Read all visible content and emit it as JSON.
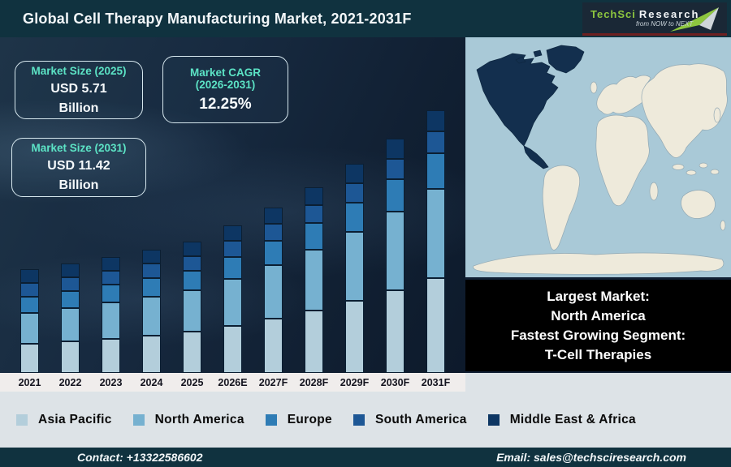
{
  "header": {
    "title": "Global Cell Therapy Manufacturing Market, 2021-2031F",
    "logo": {
      "brand": "TechSci",
      "brand2": "Research",
      "tagline": "from NOW to NEXT"
    }
  },
  "info_boxes": {
    "size_2025": {
      "title": "Market Size (2025)",
      "value": "USD 5.71",
      "unit": "Billion"
    },
    "cagr": {
      "title_line1": "Market CAGR",
      "title_line2": "(2026-2031)",
      "value": "12.25%"
    },
    "size_2031": {
      "title": "Market Size (2031)",
      "value": "USD 11.42",
      "unit": "Billion"
    }
  },
  "chart_data": {
    "type": "bar",
    "stacked": true,
    "title": "Global Cell Therapy Manufacturing Market, 2021-2031F",
    "unit": "USD Billion",
    "categories": [
      "2021",
      "2022",
      "2023",
      "2024",
      "2025",
      "2026E",
      "2027F",
      "2028F",
      "2029F",
      "2030F",
      "2031F"
    ],
    "series": [
      {
        "name": "Asia Pacific",
        "color": "#b3cedb",
        "values": [
          1.26,
          1.37,
          1.49,
          1.63,
          1.78,
          2.05,
          2.36,
          2.71,
          3.12,
          3.58,
          4.11
        ]
      },
      {
        "name": "North America",
        "color": "#76b1d0",
        "values": [
          1.35,
          1.44,
          1.56,
          1.67,
          1.8,
          2.05,
          2.33,
          2.65,
          3.01,
          3.42,
          3.88
        ]
      },
      {
        "name": "Europe",
        "color": "#2e7cb5",
        "values": [
          0.72,
          0.75,
          0.78,
          0.82,
          0.86,
          0.95,
          1.04,
          1.15,
          1.27,
          1.4,
          1.54
        ]
      },
      {
        "name": "South America",
        "color": "#1d5795",
        "values": [
          0.59,
          0.6,
          0.61,
          0.62,
          0.64,
          0.69,
          0.74,
          0.79,
          0.85,
          0.91,
          0.97
        ]
      },
      {
        "name": "Middle East & Africa",
        "color": "#0d3663",
        "values": [
          0.59,
          0.59,
          0.61,
          0.62,
          0.63,
          0.67,
          0.72,
          0.77,
          0.82,
          0.86,
          0.91
        ]
      }
    ],
    "totals": [
      4.5,
      4.75,
      5.05,
      5.36,
      5.71,
      6.41,
      7.19,
      8.07,
      9.06,
      10.17,
      11.42
    ],
    "annotations": {
      "market_size_2025": "USD 5.71 Billion",
      "market_size_2031": "USD 11.42 Billion",
      "cagr_2026_2031": "12.25%"
    },
    "ylim": [
      0,
      12
    ],
    "gridlines": false,
    "legend_position": "bottom"
  },
  "map": {
    "highlighted_region": "North America"
  },
  "callout": {
    "lines": [
      "Largest Market:",
      "North America",
      "Fastest Growing Segment:",
      "T-Cell Therapies"
    ]
  },
  "footer": {
    "contact": "Contact: +13322586602",
    "email": "Email: sales@techsciresearch.com"
  },
  "colors": {
    "header_bg": "#10323f",
    "chart_bg": "#15283c",
    "accent_teal": "#5ce3c5",
    "logo_green": "#8dc63f",
    "map_ocean": "#a9c9d7",
    "map_land": "#eeeadb",
    "map_highlight": "#132f4e",
    "callout_bg": "#000000"
  }
}
